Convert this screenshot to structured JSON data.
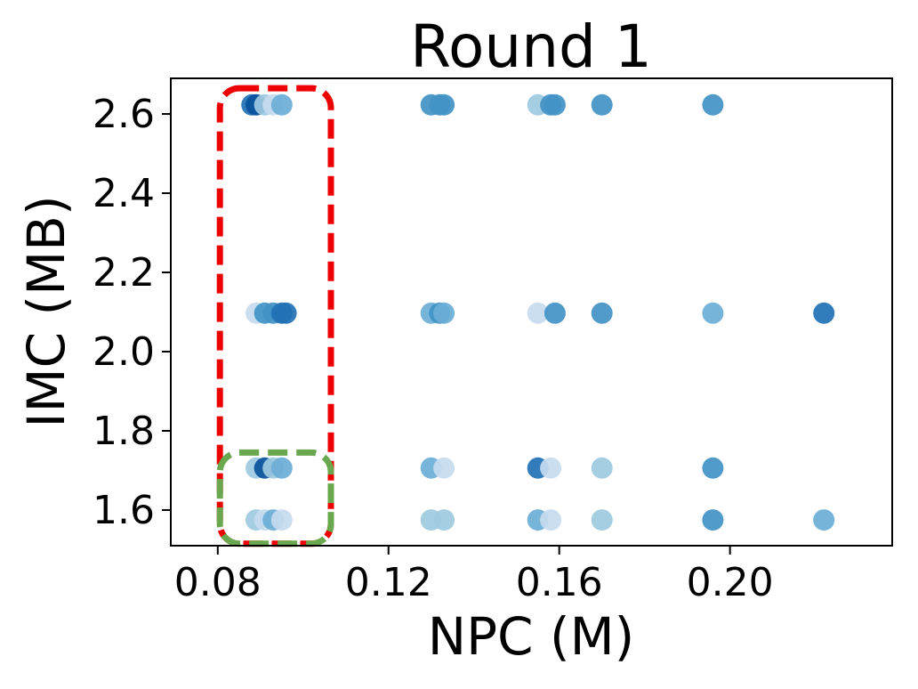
{
  "chart_data": {
    "type": "scatter",
    "title": "Round 1",
    "xlabel": "NPC (M)",
    "ylabel": "IMC (MB)",
    "xlim": [
      0.069,
      0.238
    ],
    "ylim": [
      1.51,
      2.69
    ],
    "xticks": [
      0.08,
      0.12,
      0.16,
      0.2
    ],
    "xtick_labels": [
      "0.08",
      "0.12",
      "0.16",
      "0.20"
    ],
    "yticks": [
      1.6,
      1.8,
      2.0,
      2.2,
      2.4,
      2.6
    ],
    "ytick_labels": [
      "1.6",
      "1.8",
      "2.0",
      "2.2",
      "2.4",
      "2.6"
    ],
    "grid": false,
    "legend": "none",
    "colors": {
      "lightest": "#c6dbef",
      "light": "#9ecae1",
      "medium": "#6baed6",
      "darker": "#4292c6",
      "dark": "#2171b5",
      "darkest": "#08519c"
    },
    "points": [
      {
        "x": 0.088,
        "y": 2.623,
        "color": "#2171b5"
      },
      {
        "x": 0.089,
        "y": 2.623,
        "color": "#08519c"
      },
      {
        "x": 0.091,
        "y": 2.623,
        "color": "#9ecae1"
      },
      {
        "x": 0.093,
        "y": 2.623,
        "color": "#c6dbef"
      },
      {
        "x": 0.095,
        "y": 2.623,
        "color": "#6baed6"
      },
      {
        "x": 0.13,
        "y": 2.623,
        "color": "#4292c6"
      },
      {
        "x": 0.132,
        "y": 2.623,
        "color": "#4292c6"
      },
      {
        "x": 0.133,
        "y": 2.623,
        "color": "#4292c6"
      },
      {
        "x": 0.155,
        "y": 2.623,
        "color": "#9ecae1"
      },
      {
        "x": 0.158,
        "y": 2.623,
        "color": "#4292c6"
      },
      {
        "x": 0.159,
        "y": 2.623,
        "color": "#4292c6"
      },
      {
        "x": 0.17,
        "y": 2.623,
        "color": "#4292c6"
      },
      {
        "x": 0.196,
        "y": 2.623,
        "color": "#4292c6"
      },
      {
        "x": 0.089,
        "y": 2.097,
        "color": "#c6dbef"
      },
      {
        "x": 0.091,
        "y": 2.097,
        "color": "#4292c6"
      },
      {
        "x": 0.093,
        "y": 2.097,
        "color": "#4292c6"
      },
      {
        "x": 0.095,
        "y": 2.097,
        "color": "#2171b5"
      },
      {
        "x": 0.096,
        "y": 2.097,
        "color": "#2171b5"
      },
      {
        "x": 0.13,
        "y": 2.097,
        "color": "#6baed6"
      },
      {
        "x": 0.132,
        "y": 2.097,
        "color": "#4292c6"
      },
      {
        "x": 0.133,
        "y": 2.097,
        "color": "#6baed6"
      },
      {
        "x": 0.155,
        "y": 2.097,
        "color": "#c6dbef"
      },
      {
        "x": 0.159,
        "y": 2.097,
        "color": "#4292c6"
      },
      {
        "x": 0.17,
        "y": 2.097,
        "color": "#4292c6"
      },
      {
        "x": 0.196,
        "y": 2.097,
        "color": "#6baed6"
      },
      {
        "x": 0.222,
        "y": 2.097,
        "color": "#2171b5"
      },
      {
        "x": 0.089,
        "y": 1.706,
        "color": "#9ecae1"
      },
      {
        "x": 0.091,
        "y": 1.706,
        "color": "#08519c"
      },
      {
        "x": 0.093,
        "y": 1.706,
        "color": "#9ecae1"
      },
      {
        "x": 0.095,
        "y": 1.706,
        "color": "#6baed6"
      },
      {
        "x": 0.13,
        "y": 1.706,
        "color": "#6baed6"
      },
      {
        "x": 0.133,
        "y": 1.706,
        "color": "#c6dbef"
      },
      {
        "x": 0.155,
        "y": 1.706,
        "color": "#2171b5"
      },
      {
        "x": 0.158,
        "y": 1.706,
        "color": "#c6dbef"
      },
      {
        "x": 0.17,
        "y": 1.706,
        "color": "#9ecae1"
      },
      {
        "x": 0.196,
        "y": 1.706,
        "color": "#4292c6"
      },
      {
        "x": 0.089,
        "y": 1.575,
        "color": "#9ecae1"
      },
      {
        "x": 0.091,
        "y": 1.575,
        "color": "#c6dbef"
      },
      {
        "x": 0.093,
        "y": 1.575,
        "color": "#6baed6"
      },
      {
        "x": 0.095,
        "y": 1.575,
        "color": "#c6dbef"
      },
      {
        "x": 0.13,
        "y": 1.575,
        "color": "#9ecae1"
      },
      {
        "x": 0.133,
        "y": 1.575,
        "color": "#9ecae1"
      },
      {
        "x": 0.155,
        "y": 1.575,
        "color": "#6baed6"
      },
      {
        "x": 0.158,
        "y": 1.575,
        "color": "#c6dbef"
      },
      {
        "x": 0.17,
        "y": 1.575,
        "color": "#9ecae1"
      },
      {
        "x": 0.196,
        "y": 1.575,
        "color": "#4292c6"
      },
      {
        "x": 0.222,
        "y": 1.575,
        "color": "#6baed6"
      }
    ],
    "annotations": [
      {
        "type": "dashed-rounded-box",
        "color": "#ee0000",
        "x_range": [
          0.0805,
          0.1065
        ],
        "y_range": [
          1.515,
          2.665
        ]
      },
      {
        "type": "dashed-rounded-box",
        "color": "#6aa84f",
        "x_range": [
          0.0805,
          0.1065
        ],
        "y_range": [
          1.515,
          1.745
        ]
      }
    ]
  }
}
